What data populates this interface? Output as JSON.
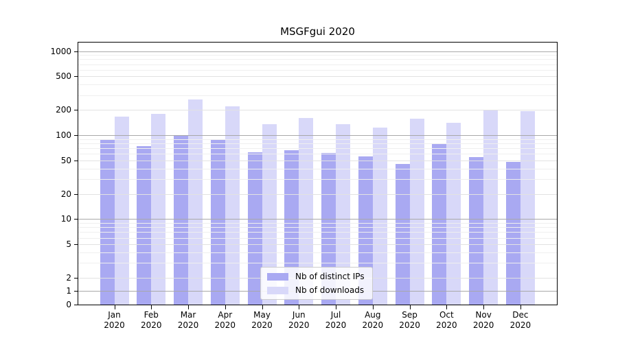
{
  "chart_data": {
    "type": "bar",
    "title": "MSGFgui 2020",
    "year": "2020",
    "categories": [
      "Jan",
      "Feb",
      "Mar",
      "Apr",
      "May",
      "Jun",
      "Jul",
      "Aug",
      "Sep",
      "Oct",
      "Nov",
      "Dec"
    ],
    "series": [
      {
        "name": "Nb of distinct IPs",
        "color": "#a9a9f2",
        "values": [
          87,
          74,
          100,
          88,
          62,
          66,
          61,
          56,
          45,
          78,
          55,
          48
        ]
      },
      {
        "name": "Nb of downloads",
        "color": "#d8d8f9",
        "values": [
          166,
          180,
          268,
          220,
          134,
          159,
          135,
          124,
          157,
          139,
          196,
          194
        ]
      }
    ],
    "yticks": [
      1000,
      500,
      200,
      100,
      50,
      20,
      10,
      5,
      2,
      1,
      0
    ],
    "ylim": [
      0,
      1000
    ],
    "yscale": "log (symlog: linear below 2, log above)",
    "grid": true,
    "legend_position": "bottom-center",
    "grid_colors": {
      "major": "#a8a8a8",
      "mid": "#e2e2e2",
      "minor": "#efefef"
    }
  }
}
